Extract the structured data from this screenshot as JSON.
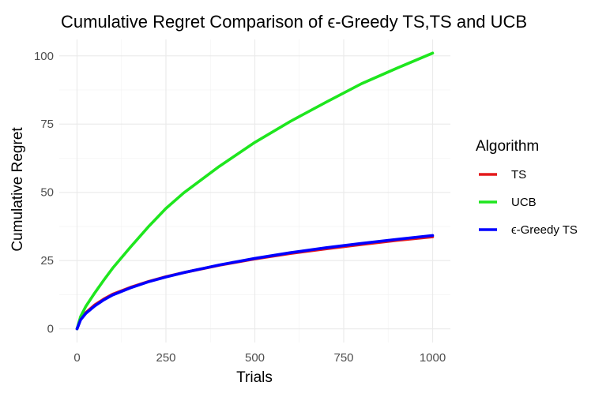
{
  "chart_data": {
    "type": "line",
    "title": "Cumulative Regret Comparison of ϵ-Greedy TS,TS and UCB",
    "xlabel": "Trials",
    "ylabel": "Cumulative Regret",
    "xlim": [
      0,
      1000
    ],
    "ylim": [
      0,
      101
    ],
    "x_ticks": [
      0,
      250,
      500,
      750,
      1000
    ],
    "y_ticks": [
      0,
      25,
      50,
      75,
      100
    ],
    "grid": true,
    "legend": {
      "title": "Algorithm",
      "placement": "right",
      "entries": [
        "TS",
        "UCB",
        "ϵ-Greedy TS"
      ]
    },
    "x": [
      0,
      10,
      25,
      50,
      75,
      100,
      150,
      200,
      250,
      300,
      400,
      500,
      600,
      700,
      800,
      900,
      1000
    ],
    "series": [
      {
        "name": "TS",
        "color": "#e41a1c",
        "values": [
          0,
          3.5,
          6.0,
          8.8,
          10.9,
          12.7,
          15.2,
          17.3,
          19.1,
          20.6,
          23.3,
          25.6,
          27.6,
          29.3,
          30.9,
          32.4,
          33.7
        ]
      },
      {
        "name": "UCB",
        "color": "#1ee61e",
        "values": [
          0,
          4.5,
          8.3,
          13.2,
          17.8,
          22.2,
          29.9,
          37.3,
          44.1,
          49.8,
          59.5,
          68.3,
          76.0,
          83.0,
          89.8,
          95.5,
          101.0
        ]
      },
      {
        "name": "ϵ-Greedy TS",
        "color": "#0000ff",
        "values": [
          0,
          3.3,
          5.7,
          8.4,
          10.6,
          12.4,
          15.0,
          17.2,
          19.0,
          20.6,
          23.4,
          25.8,
          27.9,
          29.7,
          31.3,
          32.8,
          34.2
        ]
      }
    ]
  }
}
